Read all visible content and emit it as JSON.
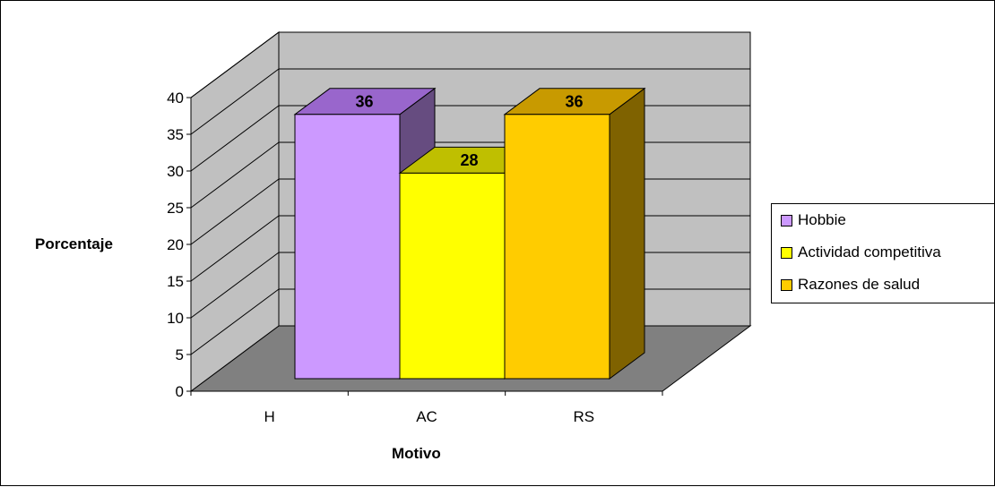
{
  "chart_data": {
    "type": "bar",
    "categories": [
      "H",
      "AC",
      "RS"
    ],
    "values": [
      36,
      28,
      36
    ],
    "data_labels": [
      "36",
      "28",
      "36"
    ],
    "xlabel": "Motivo",
    "ylabel": "Porcentaje",
    "ylim": [
      0,
      40
    ],
    "yticks": [
      "0",
      "5",
      "10",
      "15",
      "20",
      "25",
      "30",
      "35",
      "40"
    ],
    "grid": true,
    "legend_position": "right",
    "legend": [
      {
        "label": "Hobbie",
        "color": "#CC99FF"
      },
      {
        "label": "Actividad competitiva",
        "color": "#FFFF00"
      },
      {
        "label": "Razones de salud",
        "color": "#FFCC00"
      }
    ],
    "colors": {
      "wall": "#C0C0C0",
      "floor": "#808080",
      "bar_front": [
        "#CC99FF",
        "#FFFF00",
        "#FFCC00"
      ],
      "bar_top": [
        "#9966CC",
        "#BFBF00",
        "#C89A00"
      ],
      "bar_side": [
        "#664C80",
        "#808000",
        "#7F6200"
      ]
    }
  }
}
